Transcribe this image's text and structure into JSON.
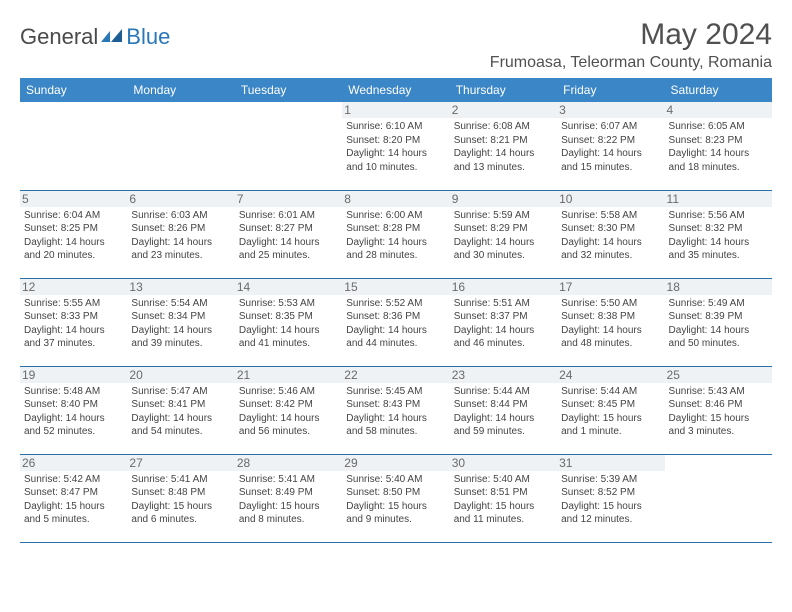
{
  "logo": {
    "general": "General",
    "blue": "Blue"
  },
  "title": "May 2024",
  "location": "Frumoasa, Teleorman County, Romania",
  "colors": {
    "header_bg": "#3b86c6",
    "header_text": "#ffffff",
    "row_border": "#2a6fa8",
    "daynum_bg": "#eef2f5",
    "text": "#444444",
    "logo_accent": "#2a77b8"
  },
  "weekdays": [
    "Sunday",
    "Monday",
    "Tuesday",
    "Wednesday",
    "Thursday",
    "Friday",
    "Saturday"
  ],
  "weeks": [
    [
      {
        "n": "",
        "sr": "",
        "ss": "",
        "dl": ""
      },
      {
        "n": "",
        "sr": "",
        "ss": "",
        "dl": ""
      },
      {
        "n": "",
        "sr": "",
        "ss": "",
        "dl": ""
      },
      {
        "n": "1",
        "sr": "Sunrise: 6:10 AM",
        "ss": "Sunset: 8:20 PM",
        "dl": "Daylight: 14 hours and 10 minutes."
      },
      {
        "n": "2",
        "sr": "Sunrise: 6:08 AM",
        "ss": "Sunset: 8:21 PM",
        "dl": "Daylight: 14 hours and 13 minutes."
      },
      {
        "n": "3",
        "sr": "Sunrise: 6:07 AM",
        "ss": "Sunset: 8:22 PM",
        "dl": "Daylight: 14 hours and 15 minutes."
      },
      {
        "n": "4",
        "sr": "Sunrise: 6:05 AM",
        "ss": "Sunset: 8:23 PM",
        "dl": "Daylight: 14 hours and 18 minutes."
      }
    ],
    [
      {
        "n": "5",
        "sr": "Sunrise: 6:04 AM",
        "ss": "Sunset: 8:25 PM",
        "dl": "Daylight: 14 hours and 20 minutes."
      },
      {
        "n": "6",
        "sr": "Sunrise: 6:03 AM",
        "ss": "Sunset: 8:26 PM",
        "dl": "Daylight: 14 hours and 23 minutes."
      },
      {
        "n": "7",
        "sr": "Sunrise: 6:01 AM",
        "ss": "Sunset: 8:27 PM",
        "dl": "Daylight: 14 hours and 25 minutes."
      },
      {
        "n": "8",
        "sr": "Sunrise: 6:00 AM",
        "ss": "Sunset: 8:28 PM",
        "dl": "Daylight: 14 hours and 28 minutes."
      },
      {
        "n": "9",
        "sr": "Sunrise: 5:59 AM",
        "ss": "Sunset: 8:29 PM",
        "dl": "Daylight: 14 hours and 30 minutes."
      },
      {
        "n": "10",
        "sr": "Sunrise: 5:58 AM",
        "ss": "Sunset: 8:30 PM",
        "dl": "Daylight: 14 hours and 32 minutes."
      },
      {
        "n": "11",
        "sr": "Sunrise: 5:56 AM",
        "ss": "Sunset: 8:32 PM",
        "dl": "Daylight: 14 hours and 35 minutes."
      }
    ],
    [
      {
        "n": "12",
        "sr": "Sunrise: 5:55 AM",
        "ss": "Sunset: 8:33 PM",
        "dl": "Daylight: 14 hours and 37 minutes."
      },
      {
        "n": "13",
        "sr": "Sunrise: 5:54 AM",
        "ss": "Sunset: 8:34 PM",
        "dl": "Daylight: 14 hours and 39 minutes."
      },
      {
        "n": "14",
        "sr": "Sunrise: 5:53 AM",
        "ss": "Sunset: 8:35 PM",
        "dl": "Daylight: 14 hours and 41 minutes."
      },
      {
        "n": "15",
        "sr": "Sunrise: 5:52 AM",
        "ss": "Sunset: 8:36 PM",
        "dl": "Daylight: 14 hours and 44 minutes."
      },
      {
        "n": "16",
        "sr": "Sunrise: 5:51 AM",
        "ss": "Sunset: 8:37 PM",
        "dl": "Daylight: 14 hours and 46 minutes."
      },
      {
        "n": "17",
        "sr": "Sunrise: 5:50 AM",
        "ss": "Sunset: 8:38 PM",
        "dl": "Daylight: 14 hours and 48 minutes."
      },
      {
        "n": "18",
        "sr": "Sunrise: 5:49 AM",
        "ss": "Sunset: 8:39 PM",
        "dl": "Daylight: 14 hours and 50 minutes."
      }
    ],
    [
      {
        "n": "19",
        "sr": "Sunrise: 5:48 AM",
        "ss": "Sunset: 8:40 PM",
        "dl": "Daylight: 14 hours and 52 minutes."
      },
      {
        "n": "20",
        "sr": "Sunrise: 5:47 AM",
        "ss": "Sunset: 8:41 PM",
        "dl": "Daylight: 14 hours and 54 minutes."
      },
      {
        "n": "21",
        "sr": "Sunrise: 5:46 AM",
        "ss": "Sunset: 8:42 PM",
        "dl": "Daylight: 14 hours and 56 minutes."
      },
      {
        "n": "22",
        "sr": "Sunrise: 5:45 AM",
        "ss": "Sunset: 8:43 PM",
        "dl": "Daylight: 14 hours and 58 minutes."
      },
      {
        "n": "23",
        "sr": "Sunrise: 5:44 AM",
        "ss": "Sunset: 8:44 PM",
        "dl": "Daylight: 14 hours and 59 minutes."
      },
      {
        "n": "24",
        "sr": "Sunrise: 5:44 AM",
        "ss": "Sunset: 8:45 PM",
        "dl": "Daylight: 15 hours and 1 minute."
      },
      {
        "n": "25",
        "sr": "Sunrise: 5:43 AM",
        "ss": "Sunset: 8:46 PM",
        "dl": "Daylight: 15 hours and 3 minutes."
      }
    ],
    [
      {
        "n": "26",
        "sr": "Sunrise: 5:42 AM",
        "ss": "Sunset: 8:47 PM",
        "dl": "Daylight: 15 hours and 5 minutes."
      },
      {
        "n": "27",
        "sr": "Sunrise: 5:41 AM",
        "ss": "Sunset: 8:48 PM",
        "dl": "Daylight: 15 hours and 6 minutes."
      },
      {
        "n": "28",
        "sr": "Sunrise: 5:41 AM",
        "ss": "Sunset: 8:49 PM",
        "dl": "Daylight: 15 hours and 8 minutes."
      },
      {
        "n": "29",
        "sr": "Sunrise: 5:40 AM",
        "ss": "Sunset: 8:50 PM",
        "dl": "Daylight: 15 hours and 9 minutes."
      },
      {
        "n": "30",
        "sr": "Sunrise: 5:40 AM",
        "ss": "Sunset: 8:51 PM",
        "dl": "Daylight: 15 hours and 11 minutes."
      },
      {
        "n": "31",
        "sr": "Sunrise: 5:39 AM",
        "ss": "Sunset: 8:52 PM",
        "dl": "Daylight: 15 hours and 12 minutes."
      },
      {
        "n": "",
        "sr": "",
        "ss": "",
        "dl": ""
      }
    ]
  ]
}
